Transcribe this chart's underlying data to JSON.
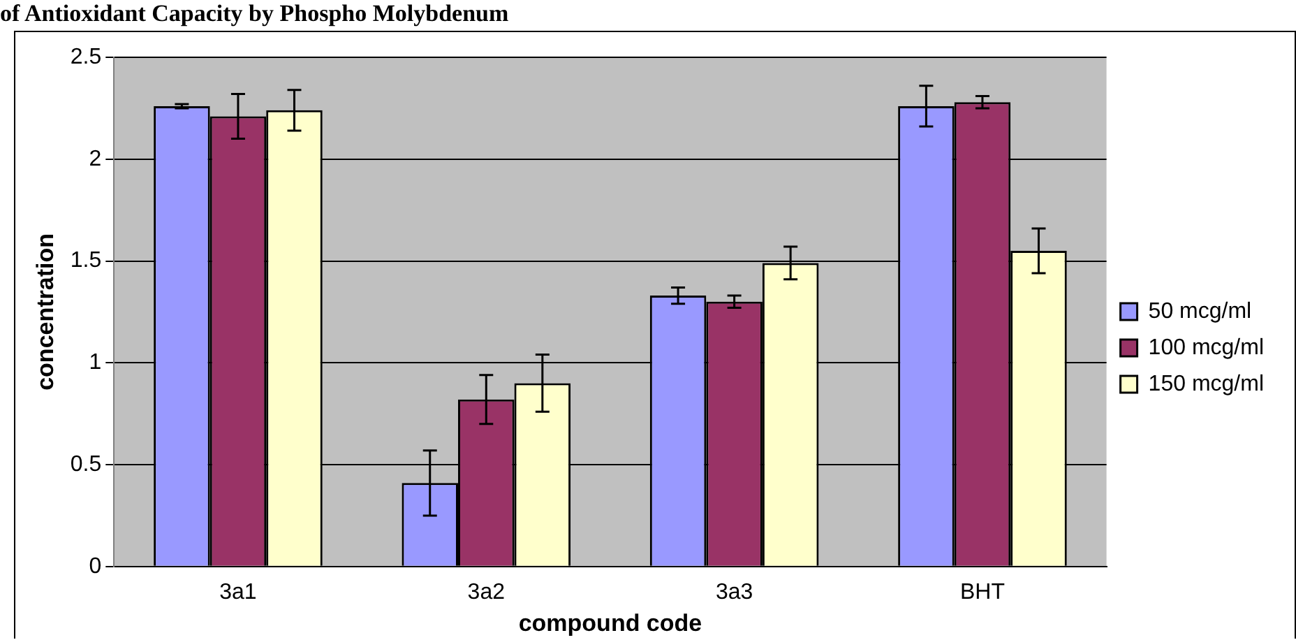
{
  "chart_data": {
    "type": "bar",
    "title": "of Antioxidant Capacity by Phospho Molybdenum",
    "xlabel": "compound code",
    "ylabel": "concentration",
    "categories": [
      "3a1",
      "3a2",
      "3a3",
      "BHT"
    ],
    "series": [
      {
        "name": "50 mcg/ml",
        "color": "#9999ff",
        "values": [
          2.26,
          0.41,
          1.33,
          2.26
        ],
        "errors": [
          0.01,
          0.16,
          0.04,
          0.1
        ]
      },
      {
        "name": "100 mcg/ml",
        "color": "#993366",
        "values": [
          2.21,
          0.82,
          1.3,
          2.28
        ],
        "errors": [
          0.11,
          0.12,
          0.03,
          0.03
        ]
      },
      {
        "name": "150 mcg/ml",
        "color": "#ffffcc",
        "values": [
          2.24,
          0.9,
          1.49,
          1.55
        ],
        "errors": [
          0.1,
          0.14,
          0.08,
          0.11
        ]
      }
    ],
    "ylim": [
      0,
      2.5
    ],
    "yticks": [
      0,
      0.5,
      1,
      1.5,
      2,
      2.5
    ],
    "grid": "y",
    "legend": "right"
  }
}
